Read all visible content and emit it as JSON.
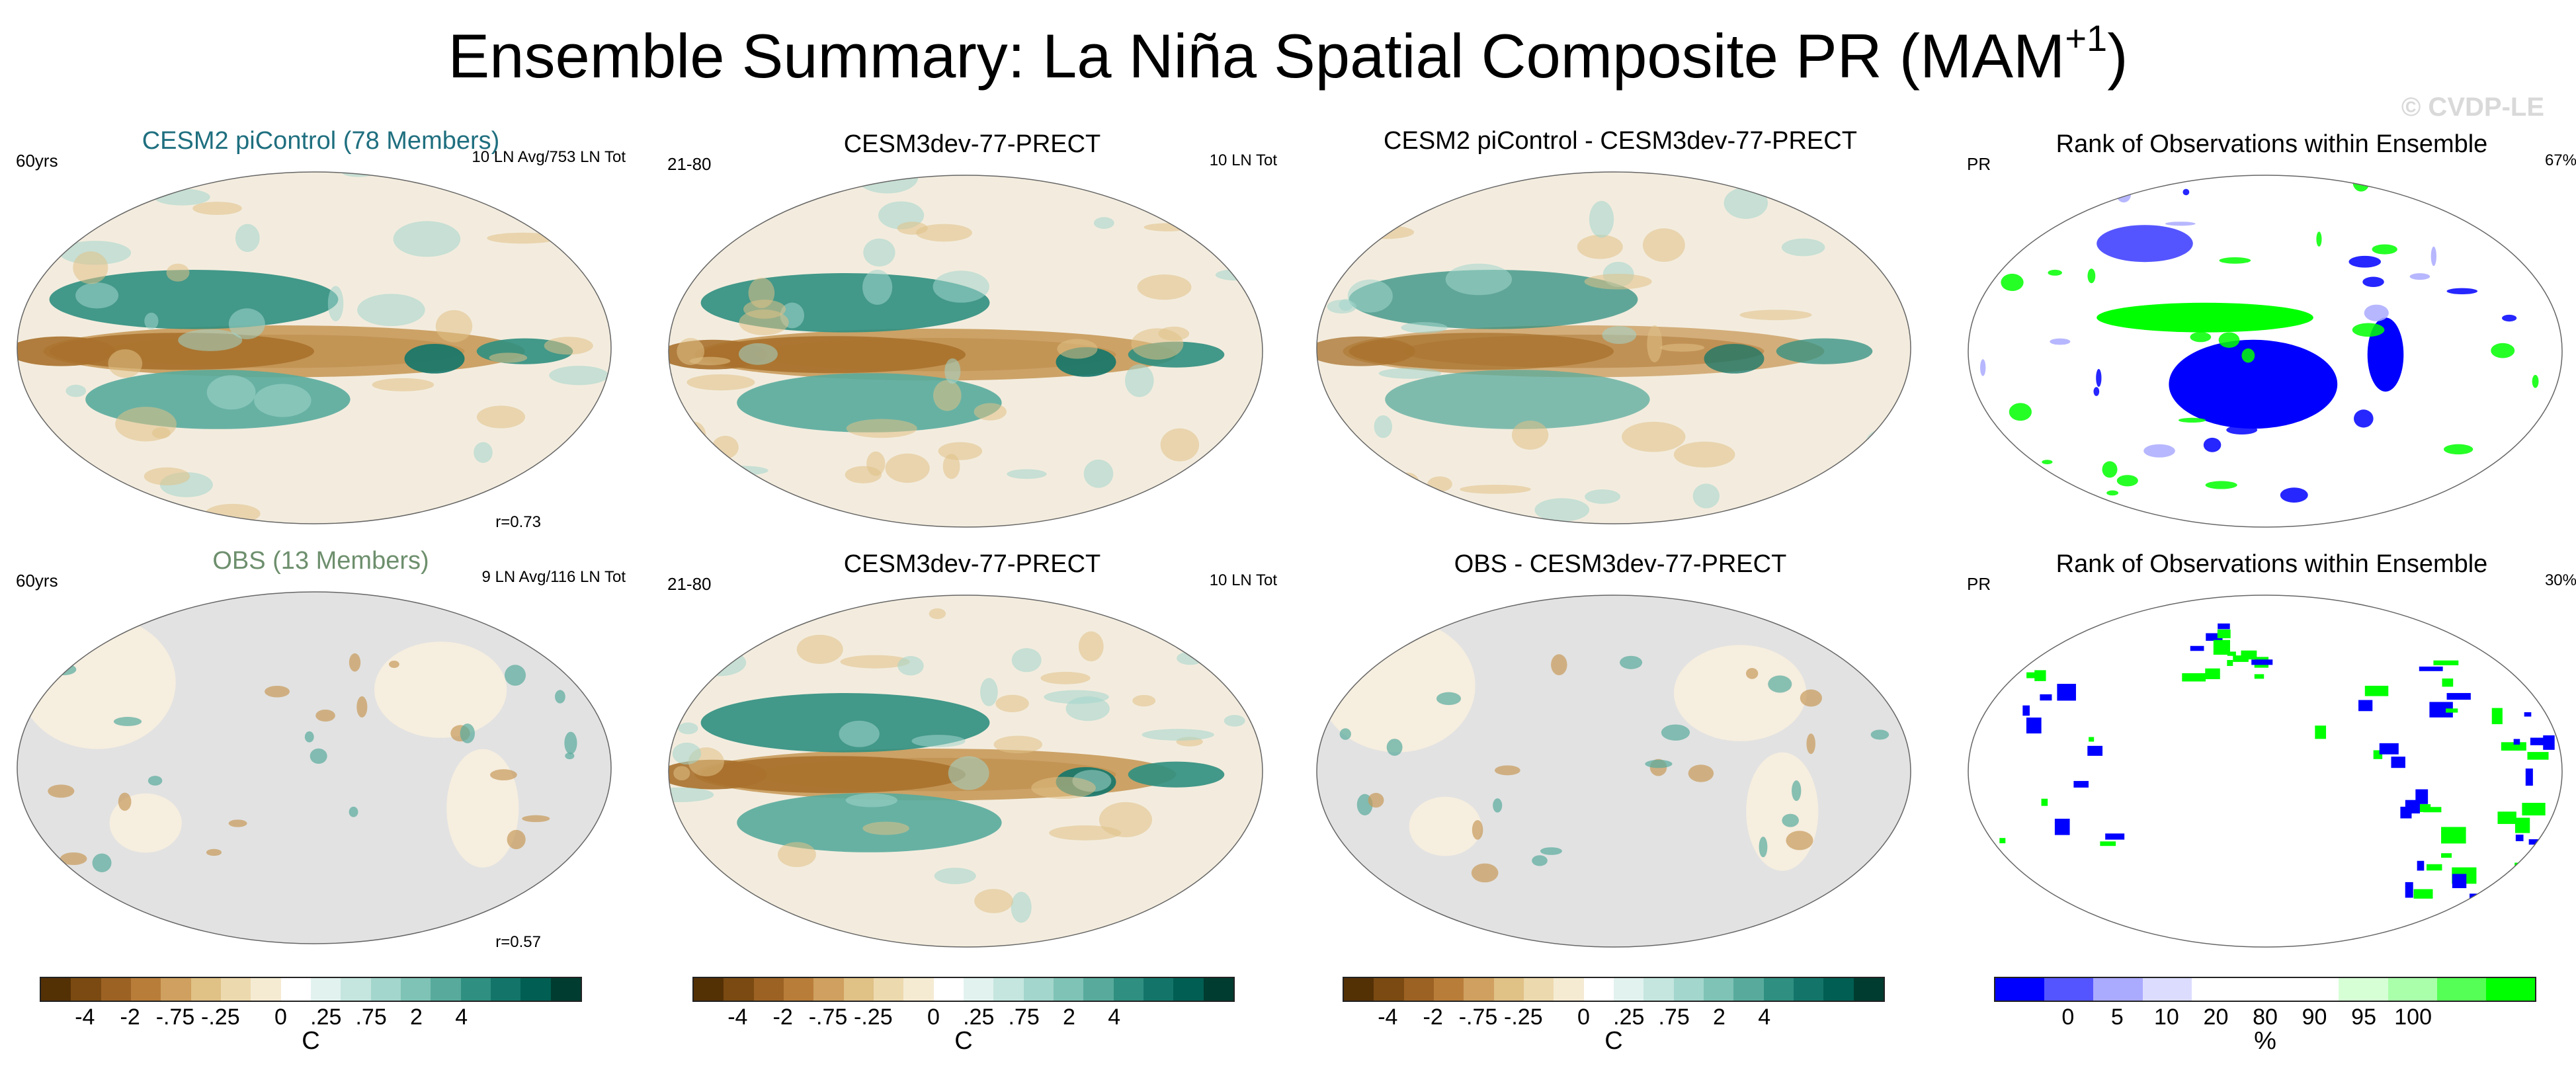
{
  "figure": {
    "title": "Ensemble Summary: La Niña Spatial Composite PR (MAM",
    "title_sup": "+1",
    "title_close": ")",
    "watermark": "© CVDP-LE"
  },
  "chart_data": [
    {
      "type": "heatmap",
      "title": "CESM2 piControl (78 Members)",
      "title_color": "#1f6f7f",
      "left_label": "60yrs",
      "right_label": "10 LN Avg/753 LN Tot",
      "corr_label": "r=0.73",
      "field": "composite",
      "background": "#f3ecde"
    },
    {
      "type": "heatmap",
      "title": "CESM3dev-77-PRECT",
      "title_color": "#000000",
      "left_label": "21-80",
      "right_label": "10 LN Tot",
      "field": "composite",
      "background": "#f3ecde"
    },
    {
      "type": "heatmap",
      "title": "CESM2 piControl - CESM3dev-77-PRECT",
      "title_color": "#000000",
      "left_label": "",
      "right_label": "",
      "field": "difference",
      "background": "#f3ecde"
    },
    {
      "type": "heatmap",
      "title": "Rank of Observations within Ensemble",
      "title_color": "#000000",
      "left_label": "PR",
      "right_label": "67%",
      "field": "rank",
      "background": "#ffffff"
    },
    {
      "type": "heatmap",
      "title": "OBS (13 Members)",
      "title_color": "#6d8f6d",
      "left_label": "60yrs",
      "right_label": "9 LN Avg/116 LN Tot",
      "corr_label": "r=0.57",
      "field": "obs",
      "background": "#e2e2e2"
    },
    {
      "type": "heatmap",
      "title": "CESM3dev-77-PRECT",
      "title_color": "#000000",
      "left_label": "21-80",
      "right_label": "10 LN Tot",
      "field": "composite",
      "background": "#f3ecde"
    },
    {
      "type": "heatmap",
      "title": "OBS - CESM3dev-77-PRECT",
      "title_color": "#000000",
      "left_label": "",
      "right_label": "",
      "field": "obs-diff",
      "background": "#e2e2e2"
    },
    {
      "type": "heatmap",
      "title": "Rank of Observations within Ensemble",
      "title_color": "#000000",
      "left_label": "PR",
      "right_label": "30%",
      "field": "rank-land",
      "background": "#ffffff"
    }
  ],
  "colorbars": [
    {
      "name": "precip-anomaly",
      "unit": "C",
      "ticks": [
        "-4",
        "-2",
        "-.75",
        "-.25",
        "0",
        ".25",
        ".75",
        "2",
        "4"
      ],
      "colors": [
        "#543005",
        "#7a4a12",
        "#9c6224",
        "#b97d3a",
        "#cfa05f",
        "#e0c186",
        "#ecd9ae",
        "#f5ebd3",
        "#ffffff",
        "#e2f2ef",
        "#c4e6df",
        "#a3d6cc",
        "#7fc3b6",
        "#58ab9c",
        "#2f8f80",
        "#13756a",
        "#015e52",
        "#003c30"
      ]
    },
    {
      "name": "rank-percent",
      "unit": "%",
      "ticks": [
        "0",
        "5",
        "10",
        "20",
        "80",
        "90",
        "95",
        "100"
      ],
      "colors": [
        "#0000ff",
        "#5555ff",
        "#aaaaff",
        "#dcdcff",
        "#ffffff",
        "#ffffff",
        "#ffffff",
        "#d6ffd6",
        "#aaffaa",
        "#55ff55",
        "#00ff00"
      ]
    }
  ]
}
